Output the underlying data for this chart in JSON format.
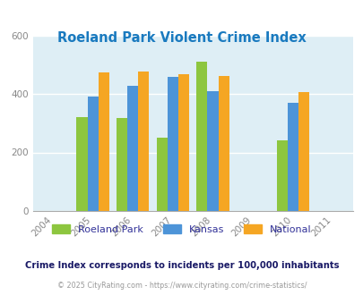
{
  "title": "Roeland Park Violent Crime Index",
  "title_color": "#1a7abf",
  "all_years": [
    2004,
    2005,
    2006,
    2007,
    2008,
    2009,
    2010,
    2011
  ],
  "bar_years": [
    2005,
    2006,
    2007,
    2008,
    2010
  ],
  "roeland_park": [
    320,
    318,
    250,
    510,
    240
  ],
  "kansas": [
    390,
    428,
    458,
    408,
    370
  ],
  "national": [
    472,
    478,
    468,
    460,
    407
  ],
  "rp_color": "#8dc63f",
  "ks_color": "#4d94d8",
  "nat_color": "#f5a623",
  "bg_color": "#deeef5",
  "ylim": [
    0,
    600
  ],
  "yticks": [
    0,
    200,
    400,
    600
  ],
  "bar_width": 0.27,
  "subtitle": "Crime Index corresponds to incidents per 100,000 inhabitants",
  "subtitle_color": "#1a1a66",
  "caption": "© 2025 CityRating.com - https://www.cityrating.com/crime-statistics/",
  "caption_color": "#999999",
  "legend_labels": [
    "Roeland Park",
    "Kansas",
    "National"
  ],
  "legend_text_color": "#333399",
  "tick_color": "#888888",
  "grid_color": "#ffffff",
  "spine_color": "#aaaaaa"
}
